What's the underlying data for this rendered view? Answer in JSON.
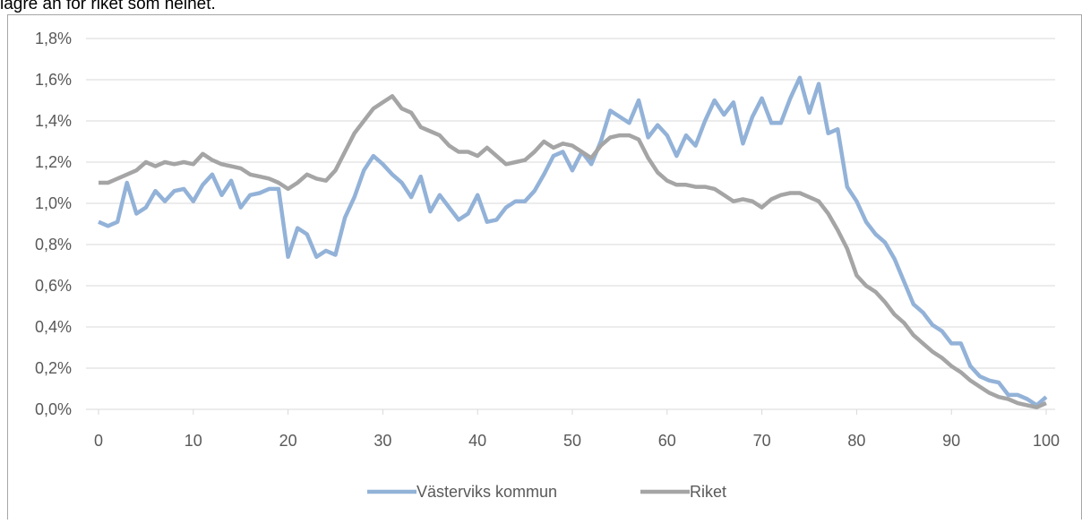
{
  "intro_text": "lägre än för riket som helhet.",
  "chart_data": {
    "type": "line",
    "x": [
      0,
      1,
      2,
      3,
      4,
      5,
      6,
      7,
      8,
      9,
      10,
      11,
      12,
      13,
      14,
      15,
      16,
      17,
      18,
      19,
      20,
      21,
      22,
      23,
      24,
      25,
      26,
      27,
      28,
      29,
      30,
      31,
      32,
      33,
      34,
      35,
      36,
      37,
      38,
      39,
      40,
      41,
      42,
      43,
      44,
      45,
      46,
      47,
      48,
      49,
      50,
      51,
      52,
      53,
      54,
      55,
      56,
      57,
      58,
      59,
      60,
      61,
      62,
      63,
      64,
      65,
      66,
      67,
      68,
      69,
      70,
      71,
      72,
      73,
      74,
      75,
      76,
      77,
      78,
      79,
      80,
      81,
      82,
      83,
      84,
      85,
      86,
      87,
      88,
      89,
      90,
      91,
      92,
      93,
      94,
      95,
      96,
      97,
      98,
      99,
      100
    ],
    "series": [
      {
        "name": "Västerviks kommun",
        "color": "#93b2d8",
        "values": [
          0.91,
          0.89,
          0.91,
          1.1,
          0.95,
          0.98,
          1.06,
          1.01,
          1.06,
          1.07,
          1.01,
          1.09,
          1.14,
          1.04,
          1.11,
          0.98,
          1.04,
          1.05,
          1.07,
          1.07,
          0.74,
          0.88,
          0.85,
          0.74,
          0.77,
          0.75,
          0.93,
          1.03,
          1.16,
          1.23,
          1.19,
          1.14,
          1.1,
          1.03,
          1.13,
          0.96,
          1.04,
          0.98,
          0.92,
          0.95,
          1.04,
          0.91,
          0.92,
          0.98,
          1.01,
          1.01,
          1.06,
          1.14,
          1.23,
          1.25,
          1.16,
          1.25,
          1.19,
          1.3,
          1.45,
          1.42,
          1.39,
          1.5,
          1.32,
          1.38,
          1.33,
          1.23,
          1.33,
          1.28,
          1.4,
          1.5,
          1.43,
          1.49,
          1.29,
          1.42,
          1.51,
          1.39,
          1.39,
          1.51,
          1.61,
          1.44,
          1.58,
          1.34,
          1.36,
          1.08,
          1.01,
          0.91,
          0.85,
          0.81,
          0.73,
          0.62,
          0.51,
          0.47,
          0.41,
          0.38,
          0.32,
          0.32,
          0.21,
          0.16,
          0.14,
          0.13,
          0.07,
          0.07,
          0.05,
          0.02,
          0.06
        ]
      },
      {
        "name": "Riket",
        "color": "#a5a5a5",
        "values": [
          1.1,
          1.1,
          1.12,
          1.14,
          1.16,
          1.2,
          1.18,
          1.2,
          1.19,
          1.2,
          1.19,
          1.24,
          1.21,
          1.19,
          1.18,
          1.17,
          1.14,
          1.13,
          1.12,
          1.1,
          1.07,
          1.1,
          1.14,
          1.12,
          1.11,
          1.16,
          1.25,
          1.34,
          1.4,
          1.46,
          1.49,
          1.52,
          1.46,
          1.44,
          1.37,
          1.35,
          1.33,
          1.28,
          1.25,
          1.25,
          1.23,
          1.27,
          1.23,
          1.19,
          1.2,
          1.21,
          1.25,
          1.3,
          1.27,
          1.29,
          1.28,
          1.25,
          1.22,
          1.28,
          1.32,
          1.33,
          1.33,
          1.31,
          1.22,
          1.15,
          1.11,
          1.09,
          1.09,
          1.08,
          1.08,
          1.07,
          1.04,
          1.01,
          1.02,
          1.01,
          0.98,
          1.02,
          1.04,
          1.05,
          1.05,
          1.03,
          1.01,
          0.95,
          0.87,
          0.78,
          0.65,
          0.6,
          0.57,
          0.52,
          0.46,
          0.42,
          0.36,
          0.32,
          0.28,
          0.25,
          0.21,
          0.18,
          0.14,
          0.11,
          0.08,
          0.06,
          0.05,
          0.03,
          0.02,
          0.01,
          0.03
        ]
      }
    ],
    "xlim": [
      0,
      100
    ],
    "xticks": [
      0,
      10,
      20,
      30,
      40,
      50,
      60,
      70,
      80,
      90,
      100
    ],
    "ylim": [
      0,
      1.8
    ],
    "yticks": [
      {
        "value": 0,
        "label": "0,0%"
      },
      {
        "value": 0.2,
        "label": "0,2%"
      },
      {
        "value": 0.4,
        "label": "0,4%"
      },
      {
        "value": 0.6,
        "label": "0,6%"
      },
      {
        "value": 0.8,
        "label": "0,8%"
      },
      {
        "value": 1.0,
        "label": "1,0%"
      },
      {
        "value": 1.2,
        "label": "1,2%"
      },
      {
        "value": 1.4,
        "label": "1,4%"
      },
      {
        "value": 1.6,
        "label": "1,6%"
      },
      {
        "value": 1.8,
        "label": "1,8%"
      }
    ],
    "grid": true,
    "legend": "bottom"
  }
}
